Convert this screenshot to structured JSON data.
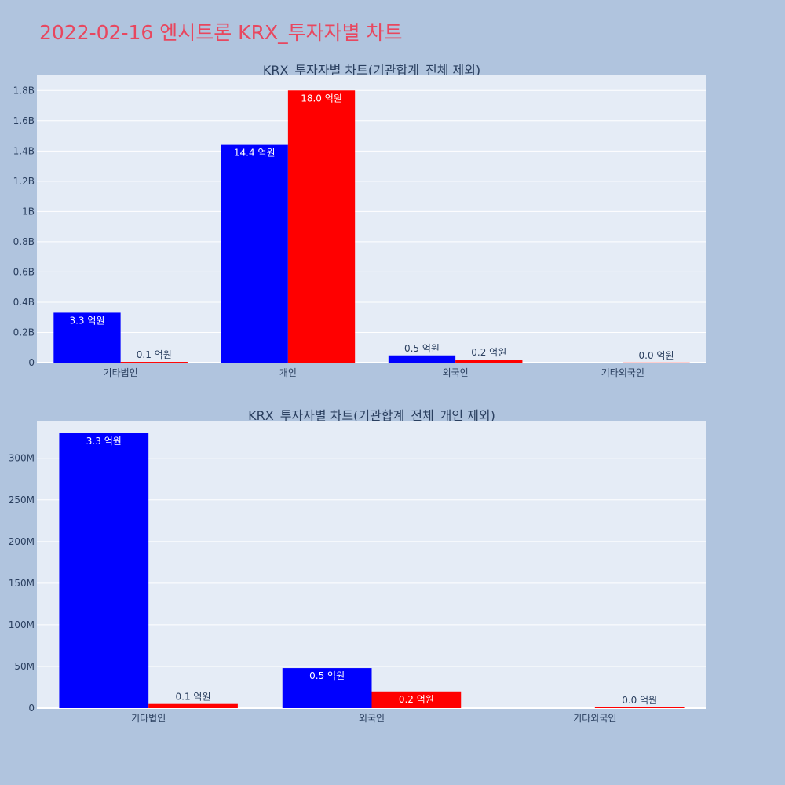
{
  "page_title": "2022-02-16 엔시트론 KRX_투자자별 차트",
  "colors": {
    "buy": "#0000ff",
    "sell": "#ff0000",
    "plot_bg": "#e5ecf6",
    "page_bg": "#b0c4de",
    "title": "#e8475f",
    "text": "#2a3f5f"
  },
  "chart_data": [
    {
      "type": "bar",
      "title": "KRX_투자자별 차트(기관합계_전체 제외)",
      "categories": [
        "기타법인",
        "개인",
        "외국인",
        "기타외국인"
      ],
      "ylim": [
        0,
        1900000000
      ],
      "yticks": [
        0,
        200000000,
        400000000,
        600000000,
        800000000,
        1000000000,
        1200000000,
        1400000000,
        1600000000,
        1800000000
      ],
      "ytick_labels": [
        "0",
        "0.2B",
        "0.4B",
        "0.6B",
        "0.8B",
        "1B",
        "1.2B",
        "1.4B",
        "1.6B",
        "1.8B"
      ],
      "series": [
        {
          "color": "#0000ff",
          "values": [
            330000000,
            1440000000,
            48000000,
            0
          ],
          "labels": [
            "3.3 억원",
            "14.4 억원",
            "0.5 억원",
            ""
          ]
        },
        {
          "color": "#ff0000",
          "values": [
            5000000,
            1800000000,
            20000000,
            1000000
          ],
          "labels": [
            "0.1 억원",
            "18.0 억원",
            "0.2 억원",
            "0.0 억원"
          ]
        }
      ],
      "grid": true
    },
    {
      "type": "bar",
      "title": "KRX_투자자별 차트(기관합계_전체_개인 제외)",
      "categories": [
        "기타법인",
        "외국인",
        "기타외국인"
      ],
      "ylim": [
        0,
        345000000
      ],
      "yticks": [
        0,
        50000000,
        100000000,
        150000000,
        200000000,
        250000000,
        300000000
      ],
      "ytick_labels": [
        "0",
        "50M",
        "100M",
        "150M",
        "200M",
        "250M",
        "300M"
      ],
      "series": [
        {
          "color": "#0000ff",
          "values": [
            330000000,
            48000000,
            0
          ],
          "labels": [
            "3.3 억원",
            "0.5 억원",
            ""
          ]
        },
        {
          "color": "#ff0000",
          "values": [
            5000000,
            20000000,
            1000000
          ],
          "labels": [
            "0.1 억원",
            "0.2 억원",
            "0.0 억원"
          ]
        }
      ],
      "grid": true
    }
  ]
}
